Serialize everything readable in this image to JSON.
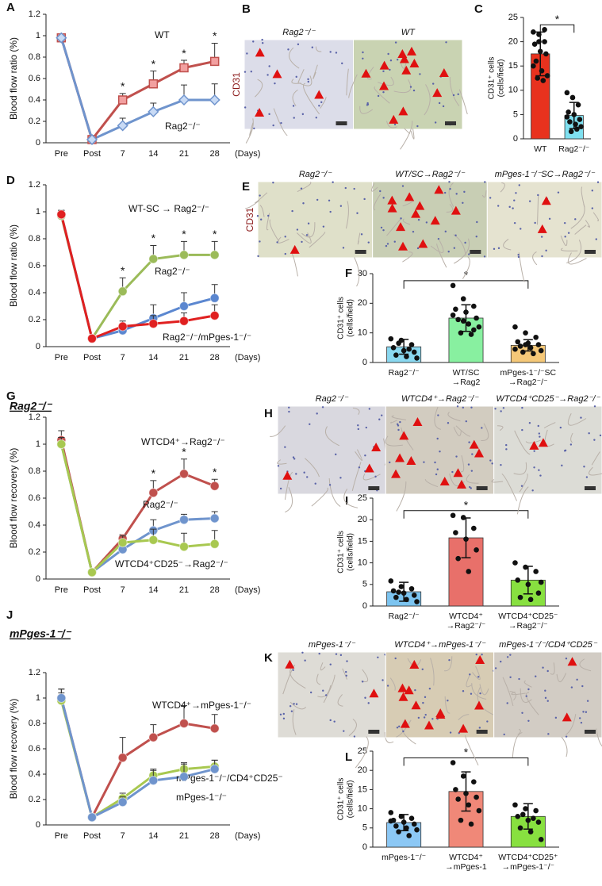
{
  "chart_data": [
    {
      "type": "line",
      "panel": "A",
      "ylabel": "Blood flow ratio (%)",
      "xunit": "(Days)",
      "categories": [
        "Pre",
        "Post",
        "7",
        "14",
        "21",
        "28"
      ],
      "ylim": [
        0,
        1.2
      ],
      "yticks": [
        0,
        0.2,
        0.4,
        0.6,
        0.8,
        1,
        1.2
      ],
      "series": [
        {
          "name": "WT",
          "color": "#c0504d",
          "marker": "square",
          "values": [
            0.98,
            0.03,
            0.4,
            0.55,
            0.7,
            0.76
          ],
          "errors": [
            0.02,
            0.01,
            0.06,
            0.12,
            0.07,
            0.17
          ]
        },
        {
          "name": "Rag2⁻/⁻",
          "color": "#6f94cd",
          "marker": "diamond",
          "values": [
            0.98,
            0.03,
            0.16,
            0.29,
            0.4,
            0.4
          ],
          "errors": [
            0.02,
            0.01,
            0.07,
            0.08,
            0.14,
            0.15
          ]
        }
      ],
      "significance": [
        null,
        null,
        "*",
        "*",
        "*",
        "*"
      ]
    },
    {
      "type": "bar",
      "panel": "C",
      "ylabel": [
        "CD31⁺ cells",
        "(cells/field)"
      ],
      "categories": [
        [
          "WT"
        ],
        [
          "Rag2⁻/⁻"
        ]
      ],
      "values": [
        17.5,
        4.8
      ],
      "errors": [
        4.5,
        2.7
      ],
      "colors": [
        "#e8321e",
        "#7fe0f0"
      ],
      "ylim": [
        0,
        25
      ],
      "yticks": [
        0,
        5,
        10,
        15,
        20,
        25
      ],
      "points": [
        [
          22,
          21.5,
          20,
          19.5,
          18,
          17.5,
          16,
          14,
          13,
          12.5,
          12,
          15,
          20,
          22.5
        ],
        [
          9.5,
          8.5,
          7,
          5.5,
          5,
          4,
          3.5,
          3,
          2.5,
          1.5,
          2,
          4.5
        ]
      ],
      "significance": "*"
    },
    {
      "type": "line",
      "panel": "D",
      "ylabel": "Blood flow ratio (%)",
      "xunit": "(Days)",
      "categories": [
        "Pre",
        "Post",
        "7",
        "14",
        "21",
        "28"
      ],
      "ylim": [
        0,
        1.2
      ],
      "yticks": [
        0,
        0.2,
        0.4,
        0.6,
        0.8,
        1,
        1.2
      ],
      "series": [
        {
          "name": "WT-SC → Rag2⁻/⁻",
          "color": "#9bbb59",
          "marker": "circle",
          "values": [
            0.97,
            0.06,
            0.41,
            0.65,
            0.68,
            0.68
          ],
          "errors": [
            0.04,
            0.02,
            0.1,
            0.1,
            0.1,
            0.1
          ]
        },
        {
          "name": "Rag2⁻/⁻",
          "color": "#5b87d0",
          "marker": "circle",
          "values": [
            0.98,
            0.06,
            0.12,
            0.21,
            0.3,
            0.36
          ],
          "errors": [
            0.03,
            0.02,
            0.05,
            0.1,
            0.1,
            0.1
          ]
        },
        {
          "name": "Rag2⁻/⁻/mPges-1⁻/⁻",
          "color": "#e02020",
          "marker": "circle",
          "values": [
            0.98,
            0.06,
            0.15,
            0.17,
            0.19,
            0.23
          ],
          "errors": [
            0.03,
            0.02,
            0.04,
            0.06,
            0.06,
            0.08
          ]
        }
      ],
      "significance": [
        null,
        null,
        "*",
        "*",
        "*",
        "*"
      ]
    },
    {
      "type": "bar",
      "panel": "F",
      "ylabel": [
        "CD31⁺ cells",
        "(cells/field)"
      ],
      "categories": [
        [
          "Rag2⁻/⁻"
        ],
        [
          "WT/SC",
          "→Rag2"
        ],
        [
          "mPges-1⁻/⁻SC",
          "→Rag2⁻/⁻"
        ]
      ],
      "values": [
        5.3,
        15,
        5.8
      ],
      "errors": [
        2.5,
        4.5,
        1.9
      ],
      "colors": [
        "#8ad8f0",
        "#88f0a0",
        "#f5c878"
      ],
      "ylim": [
        0,
        30
      ],
      "yticks": [
        0,
        10,
        20,
        30
      ],
      "points": [
        [
          8,
          7.5,
          6,
          5,
          4,
          3.5,
          2.5,
          2,
          1.5,
          6.5,
          4.5
        ],
        [
          26,
          21.5,
          19,
          18,
          17,
          15,
          14.5,
          13,
          12,
          10,
          9.5,
          16,
          14,
          11
        ],
        [
          12,
          10,
          8.5,
          7,
          6.5,
          6,
          5.5,
          5,
          4,
          3.5,
          3,
          4.5,
          6
        ]
      ],
      "significance": "*"
    },
    {
      "type": "line",
      "panel": "G",
      "heading": "Rag2⁻/⁻",
      "ylabel": "Blood flow recovery (%)",
      "xunit": "(Days)",
      "categories": [
        "Pre",
        "Post",
        "7",
        "14",
        "21",
        "28"
      ],
      "ylim": [
        0,
        1.2
      ],
      "yticks": [
        0,
        0.2,
        0.4,
        0.6,
        0.8,
        1,
        1.2
      ],
      "series": [
        {
          "name": "WTCD4⁺→Rag2⁻/⁻",
          "color": "#c0504d",
          "marker": "circle",
          "values": [
            1.03,
            0.05,
            0.3,
            0.64,
            0.78,
            0.69
          ],
          "errors": [
            0.07,
            0.02,
            0.03,
            0.09,
            0.11,
            0.05
          ]
        },
        {
          "name": "Rag2⁻/⁻",
          "color": "#6f94cd",
          "marker": "circle",
          "values": [
            1,
            0.05,
            0.22,
            0.36,
            0.44,
            0.45
          ],
          "errors": [
            0.05,
            0.02,
            0.04,
            0.08,
            0.04,
            0.05
          ]
        },
        {
          "name": "WTCD4⁺CD25⁻→Rag2⁻/⁻",
          "color": "#a8c850",
          "marker": "circle",
          "values": [
            1,
            0.05,
            0.27,
            0.29,
            0.24,
            0.26
          ],
          "errors": [
            0.05,
            0.02,
            0.05,
            0.08,
            0.1,
            0.1
          ]
        }
      ],
      "significance": [
        null,
        null,
        null,
        "*",
        "*",
        "*"
      ]
    },
    {
      "type": "bar",
      "panel": "I",
      "ylabel": [
        "CD31⁺ cells",
        "(cells/field)"
      ],
      "categories": [
        [
          "Rag2⁻/⁻"
        ],
        [
          "WTCD4⁺",
          "→Rag2⁻/⁻"
        ],
        [
          "WTCD4⁺CD25⁻",
          "→Rag2⁻/⁻"
        ]
      ],
      "values": [
        3.3,
        15.8,
        6
      ],
      "errors": [
        2.2,
        4.6,
        3.2
      ],
      "colors": [
        "#7cc4f0",
        "#e8706a",
        "#88e040"
      ],
      "ylim": [
        0,
        25
      ],
      "yticks": [
        0,
        5,
        10,
        15,
        20,
        25
      ],
      "points": [
        [
          5.8,
          4.5,
          4,
          3.5,
          3,
          2.5,
          2,
          1.5,
          1,
          3.2
        ],
        [
          21,
          20.5,
          18,
          17,
          15.5,
          13,
          11,
          8
        ],
        [
          10,
          9,
          8,
          6,
          5,
          3,
          2,
          1.5,
          5.5
        ]
      ],
      "significance": "*"
    },
    {
      "type": "line",
      "panel": "J",
      "heading": "mPges-1⁻/⁻",
      "ylabel": "Blood flow recovery (%)",
      "xunit": "(Days)",
      "categories": [
        "Pre",
        "Post",
        "7",
        "14",
        "21",
        "28"
      ],
      "ylim": [
        0,
        1.2
      ],
      "yticks": [
        0,
        0.2,
        0.4,
        0.6,
        0.8,
        1,
        1.2
      ],
      "series": [
        {
          "name": "WTCD4⁺→mPges-1⁻/⁻",
          "color": "#c0504d",
          "marker": "circle",
          "values": [
            1,
            0.06,
            0.53,
            0.69,
            0.8,
            0.76
          ],
          "errors": [
            0.07,
            0.02,
            0.16,
            0.1,
            0.14,
            0.11
          ]
        },
        {
          "name": "mPges-1⁻/⁻/CD4⁺CD25⁻",
          "color": "#a8c850",
          "marker": "circle",
          "values": [
            0.98,
            0.06,
            0.21,
            0.39,
            0.44,
            0.46
          ],
          "errors": [
            0.06,
            0.02,
            0.04,
            0.05,
            0.05,
            0.05
          ]
        },
        {
          "name": "mPges-1⁻/⁻",
          "color": "#6f94cd",
          "marker": "circle",
          "values": [
            1,
            0.06,
            0.18,
            0.35,
            0.38,
            0.44
          ],
          "errors": [
            0.07,
            0.02,
            0.04,
            0.08,
            0.1,
            0.07
          ]
        }
      ]
    },
    {
      "type": "bar",
      "panel": "L",
      "ylabel": [
        "CD31⁺ cells",
        "(cells/field)"
      ],
      "categories": [
        [
          "mPges-1⁻/⁻"
        ],
        [
          "WTCD4⁺",
          "→mPges-1"
        ],
        [
          "WTCD4⁺CD25⁺",
          "→mPges-1⁻/⁻"
        ]
      ],
      "values": [
        6.4,
        14.5,
        8
      ],
      "errors": [
        2.1,
        5.1,
        3.3
      ],
      "colors": [
        "#8cc8f5",
        "#f08878",
        "#88e040"
      ],
      "ylim": [
        0,
        25
      ],
      "yticks": [
        0,
        5,
        10,
        15,
        20,
        25
      ],
      "points": [
        [
          9,
          8,
          7.5,
          7,
          6.5,
          6,
          5.5,
          5,
          4.5,
          4,
          3,
          6.8
        ],
        [
          22,
          18.5,
          17,
          15,
          14,
          13,
          12.5,
          11,
          9.5,
          7,
          6
        ],
        [
          11,
          10,
          9.5,
          8,
          7,
          6.5,
          5,
          4,
          2,
          8.5,
          7.5
        ]
      ],
      "significance": "*"
    }
  ],
  "images": [
    {
      "panel": "B",
      "stain": "CD31",
      "labels": [
        "Rag2⁻/⁻",
        "WT"
      ]
    },
    {
      "panel": "E",
      "stain": "CD31",
      "labels": [
        "Rag2⁻/⁻",
        "WT/SC→Rag2⁻/⁻",
        "mPges-1⁻/⁻SC→Rag2⁻/⁻"
      ]
    },
    {
      "panel": "H",
      "labels": [
        "Rag2⁻/⁻",
        "WTCD4⁺→Rag2⁻/⁻",
        "WTCD4⁺CD25⁻→Rag2⁻/⁻"
      ]
    },
    {
      "panel": "K",
      "labels": [
        "mPges-1⁻/⁻",
        "WTCD4⁺→mPges-1⁻/⁻",
        "mPges-1⁻/⁻/CD4⁺CD25⁻"
      ]
    }
  ]
}
